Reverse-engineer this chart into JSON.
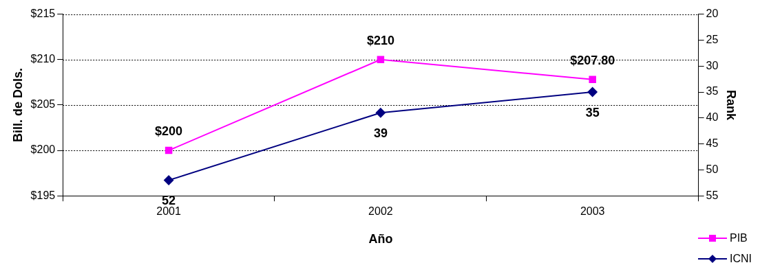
{
  "chart_data": {
    "type": "line",
    "xlabel": "Año",
    "ylabel": "Bill. de Dols.",
    "y2label": "Rank",
    "categories": [
      "2001",
      "2002",
      "2003"
    ],
    "series": [
      {
        "name": "PIB",
        "color": "#ff00ff",
        "values": [
          200,
          210,
          207.8
        ],
        "value_labels": [
          "$200",
          "$210",
          "$207.80"
        ],
        "marker": "square"
      },
      {
        "name": "ICNI",
        "color": "#000080",
        "values": [
          52,
          39,
          35
        ],
        "value_labels": [
          "52",
          "39",
          "35"
        ],
        "marker": "diamond",
        "axis": "y2"
      }
    ],
    "ylim": [
      195,
      215
    ],
    "yticks": [
      {
        "value": 195,
        "label": "$195"
      },
      {
        "value": 200,
        "label": "$200"
      },
      {
        "value": 205,
        "label": "$205"
      },
      {
        "value": 210,
        "label": "$210"
      },
      {
        "value": 215,
        "label": "$215"
      }
    ],
    "y2lim": [
      55,
      20
    ],
    "y2ticks": [
      20,
      25,
      30,
      35,
      40,
      45,
      50,
      55
    ],
    "grid": "y",
    "legend": "bottom right"
  }
}
